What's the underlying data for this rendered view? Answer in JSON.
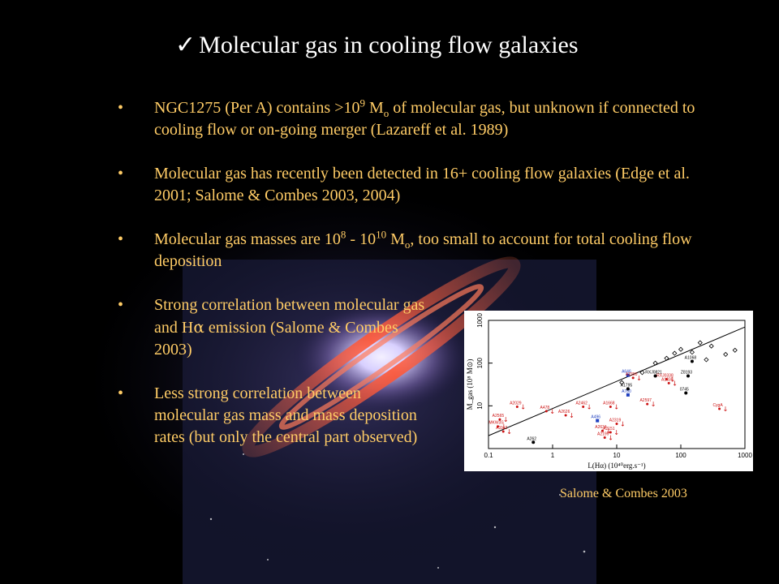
{
  "title": {
    "check": "✓",
    "text": "Molecular gas in cooling flow galaxies"
  },
  "bullet_marker": "•",
  "bullets": [
    {
      "parts": [
        "NGC1275 (Per A) contains >10",
        "9",
        " M",
        "o",
        " of molecular gas, but unknown if connected to cooling flow or on-going merger (Lazareff et al. 1989)"
      ]
    },
    {
      "text": "Molecular gas has recently been detected in 16+ cooling flow galaxies (Edge et al. 2001; Salome & Combes 2003, 2004)"
    },
    {
      "parts": [
        "Molecular gas masses are 10",
        "8",
        " - 10",
        "10",
        " M",
        "o",
        ", too small to account for total cooling flow deposition"
      ]
    },
    {
      "parts": [
        "Strong correlation between molecular gas and H",
        "α",
        " emission (Salome & Combes 2003)"
      ]
    },
    {
      "text": "Less strong correlation between molecular gas mass and mass deposition rates (but only the central part observed)"
    }
  ],
  "figure_caption": "Salome & Combes 2003",
  "chart_data": {
    "type": "scatter",
    "scale": "log-log",
    "xlabel": "L(Hα) (10⁴⁰erg.s⁻¹)",
    "ylabel": "M_gas (10⁸ M⊙)",
    "xlim": [
      0.1,
      1000
    ],
    "ylim": [
      1,
      1000
    ],
    "x_ticks": [
      "0.1",
      "1",
      "10",
      "100",
      "1000"
    ],
    "y_ticks": [
      "10",
      "100",
      "1000"
    ],
    "fit_line": {
      "x": [
        0.1,
        1000
      ],
      "y": [
        2.0,
        700
      ]
    },
    "colors": {
      "detected": "#000000",
      "blue": "#1f3fbf",
      "red": "#cc1111",
      "line": "#000000"
    },
    "labeled_points": [
      {
        "label": "A2029",
        "x": 0.28,
        "y": 9.5,
        "group": "red"
      },
      {
        "label": "A478",
        "x": 0.8,
        "y": 7.5,
        "group": "red"
      },
      {
        "label": "A2626",
        "x": 1.6,
        "y": 6.0,
        "group": "red"
      },
      {
        "label": "A2462",
        "x": 3.0,
        "y": 9.5,
        "group": "red"
      },
      {
        "label": "A1668",
        "x": 8.0,
        "y": 9.5,
        "group": "red"
      },
      {
        "label": "A2565",
        "x": 0.15,
        "y": 4.8,
        "group": "red"
      },
      {
        "label": "MKW3S",
        "x": 0.14,
        "y": 3.3,
        "group": "red"
      },
      {
        "label": "A3112",
        "x": 0.17,
        "y": 2.5,
        "group": "red"
      },
      {
        "label": "A496",
        "x": 5.0,
        "y": 4.5,
        "group": "blue"
      },
      {
        "label": "A2319",
        "x": 10,
        "y": 3.8,
        "group": "red"
      },
      {
        "label": "A2634",
        "x": 6.0,
        "y": 2.6,
        "group": "red"
      },
      {
        "label": "A2151",
        "x": 8.0,
        "y": 2.4,
        "group": "red"
      },
      {
        "label": "A2199",
        "x": 6.5,
        "y": 1.8,
        "group": "red"
      },
      {
        "label": "A262",
        "x": 0.5,
        "y": 1.4,
        "group": "detected"
      },
      {
        "label": "A2597",
        "x": 30,
        "y": 11,
        "group": "red"
      },
      {
        "label": "A780",
        "x": 15,
        "y": 18,
        "group": "blue"
      },
      {
        "label": "A1795",
        "x": 15,
        "y": 25,
        "group": "detected"
      },
      {
        "label": "0745",
        "x": 120,
        "y": 20,
        "group": "detected"
      },
      {
        "label": "CygA",
        "x": 400,
        "y": 8.5,
        "group": "red"
      },
      {
        "label": "Z8193",
        "x": 130,
        "y": 50,
        "group": "detected"
      },
      {
        "label": "A1068",
        "x": 150,
        "y": 110,
        "group": "detected"
      },
      {
        "label": "RXJ0821",
        "x": 40,
        "y": 50,
        "group": "detected"
      },
      {
        "label": "RXJ0338",
        "x": 60,
        "y": 42,
        "group": "red"
      },
      {
        "label": "A1835",
        "x": 65,
        "y": 34,
        "group": "red"
      },
      {
        "label": "A646",
        "x": 15,
        "y": 52,
        "group": "blue"
      },
      {
        "label": "A2390",
        "x": 18,
        "y": 45,
        "group": "red"
      }
    ],
    "unlabeled_points": [
      {
        "x": 200,
        "y": 300
      },
      {
        "x": 300,
        "y": 250
      },
      {
        "x": 150,
        "y": 180
      },
      {
        "x": 500,
        "y": 160
      },
      {
        "x": 60,
        "y": 130
      },
      {
        "x": 80,
        "y": 170
      },
      {
        "x": 40,
        "y": 100
      },
      {
        "x": 100,
        "y": 210
      },
      {
        "x": 25,
        "y": 60
      },
      {
        "x": 700,
        "y": 200
      },
      {
        "x": 250,
        "y": 120
      },
      {
        "x": 12,
        "y": 35
      }
    ]
  }
}
